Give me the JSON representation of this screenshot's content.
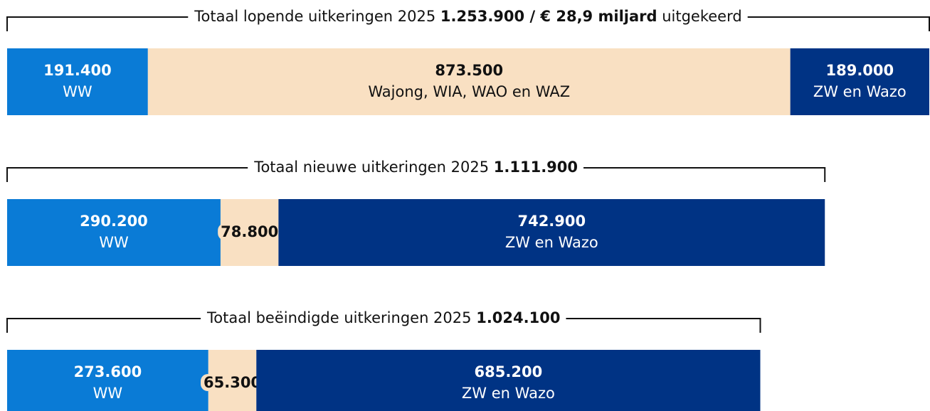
{
  "chart_data": [
    {
      "type": "stacked-bar",
      "title": "Totaal lopende uitkeringen 2025",
      "total": 1253900,
      "total_label": "1.253.900 / € 28,9 miljard",
      "title_suffix": "uitgekeerd",
      "series": [
        {
          "name": "WW",
          "color": "#0a7bd6",
          "values": [
            191400
          ],
          "value_labels": [
            "191.400"
          ]
        },
        {
          "name": "Wajong, WIA, WAO en WAZ",
          "color": "#f9e0c2",
          "values": [
            873500
          ],
          "value_labels": [
            "873.500"
          ]
        },
        {
          "name": "ZW en Wazo",
          "color": "#003384",
          "values": [
            189000
          ],
          "value_labels": [
            "189.000"
          ]
        }
      ]
    },
    {
      "type": "stacked-bar",
      "title": "Totaal nieuwe uitkeringen 2025",
      "total": 1111900,
      "total_label": "1.111.900",
      "series": [
        {
          "name": "WW",
          "color": "#0a7bd6",
          "values": [
            290200
          ],
          "value_labels": [
            "290.200"
          ]
        },
        {
          "color": "#f9e0c2",
          "values": [
            78800
          ],
          "value_labels": [
            "78.800"
          ]
        },
        {
          "name": "ZW en Wazo",
          "color": "#003384",
          "values": [
            742900
          ],
          "value_labels": [
            "742.900"
          ]
        }
      ]
    },
    {
      "type": "stacked-bar",
      "title": "Totaal beëindigde uitkeringen 2025",
      "total": 1024100,
      "total_label": "1.024.100",
      "series": [
        {
          "name": "WW",
          "color": "#0a7bd6",
          "values": [
            273600
          ],
          "value_labels": [
            "273.600"
          ]
        },
        {
          "color": "#f9e0c2",
          "values": [
            65300
          ],
          "value_labels": [
            "65.300"
          ]
        },
        {
          "name": "ZW en Wazo",
          "color": "#003384",
          "values": [
            685200
          ],
          "value_labels": [
            "685.200"
          ]
        }
      ]
    }
  ]
}
